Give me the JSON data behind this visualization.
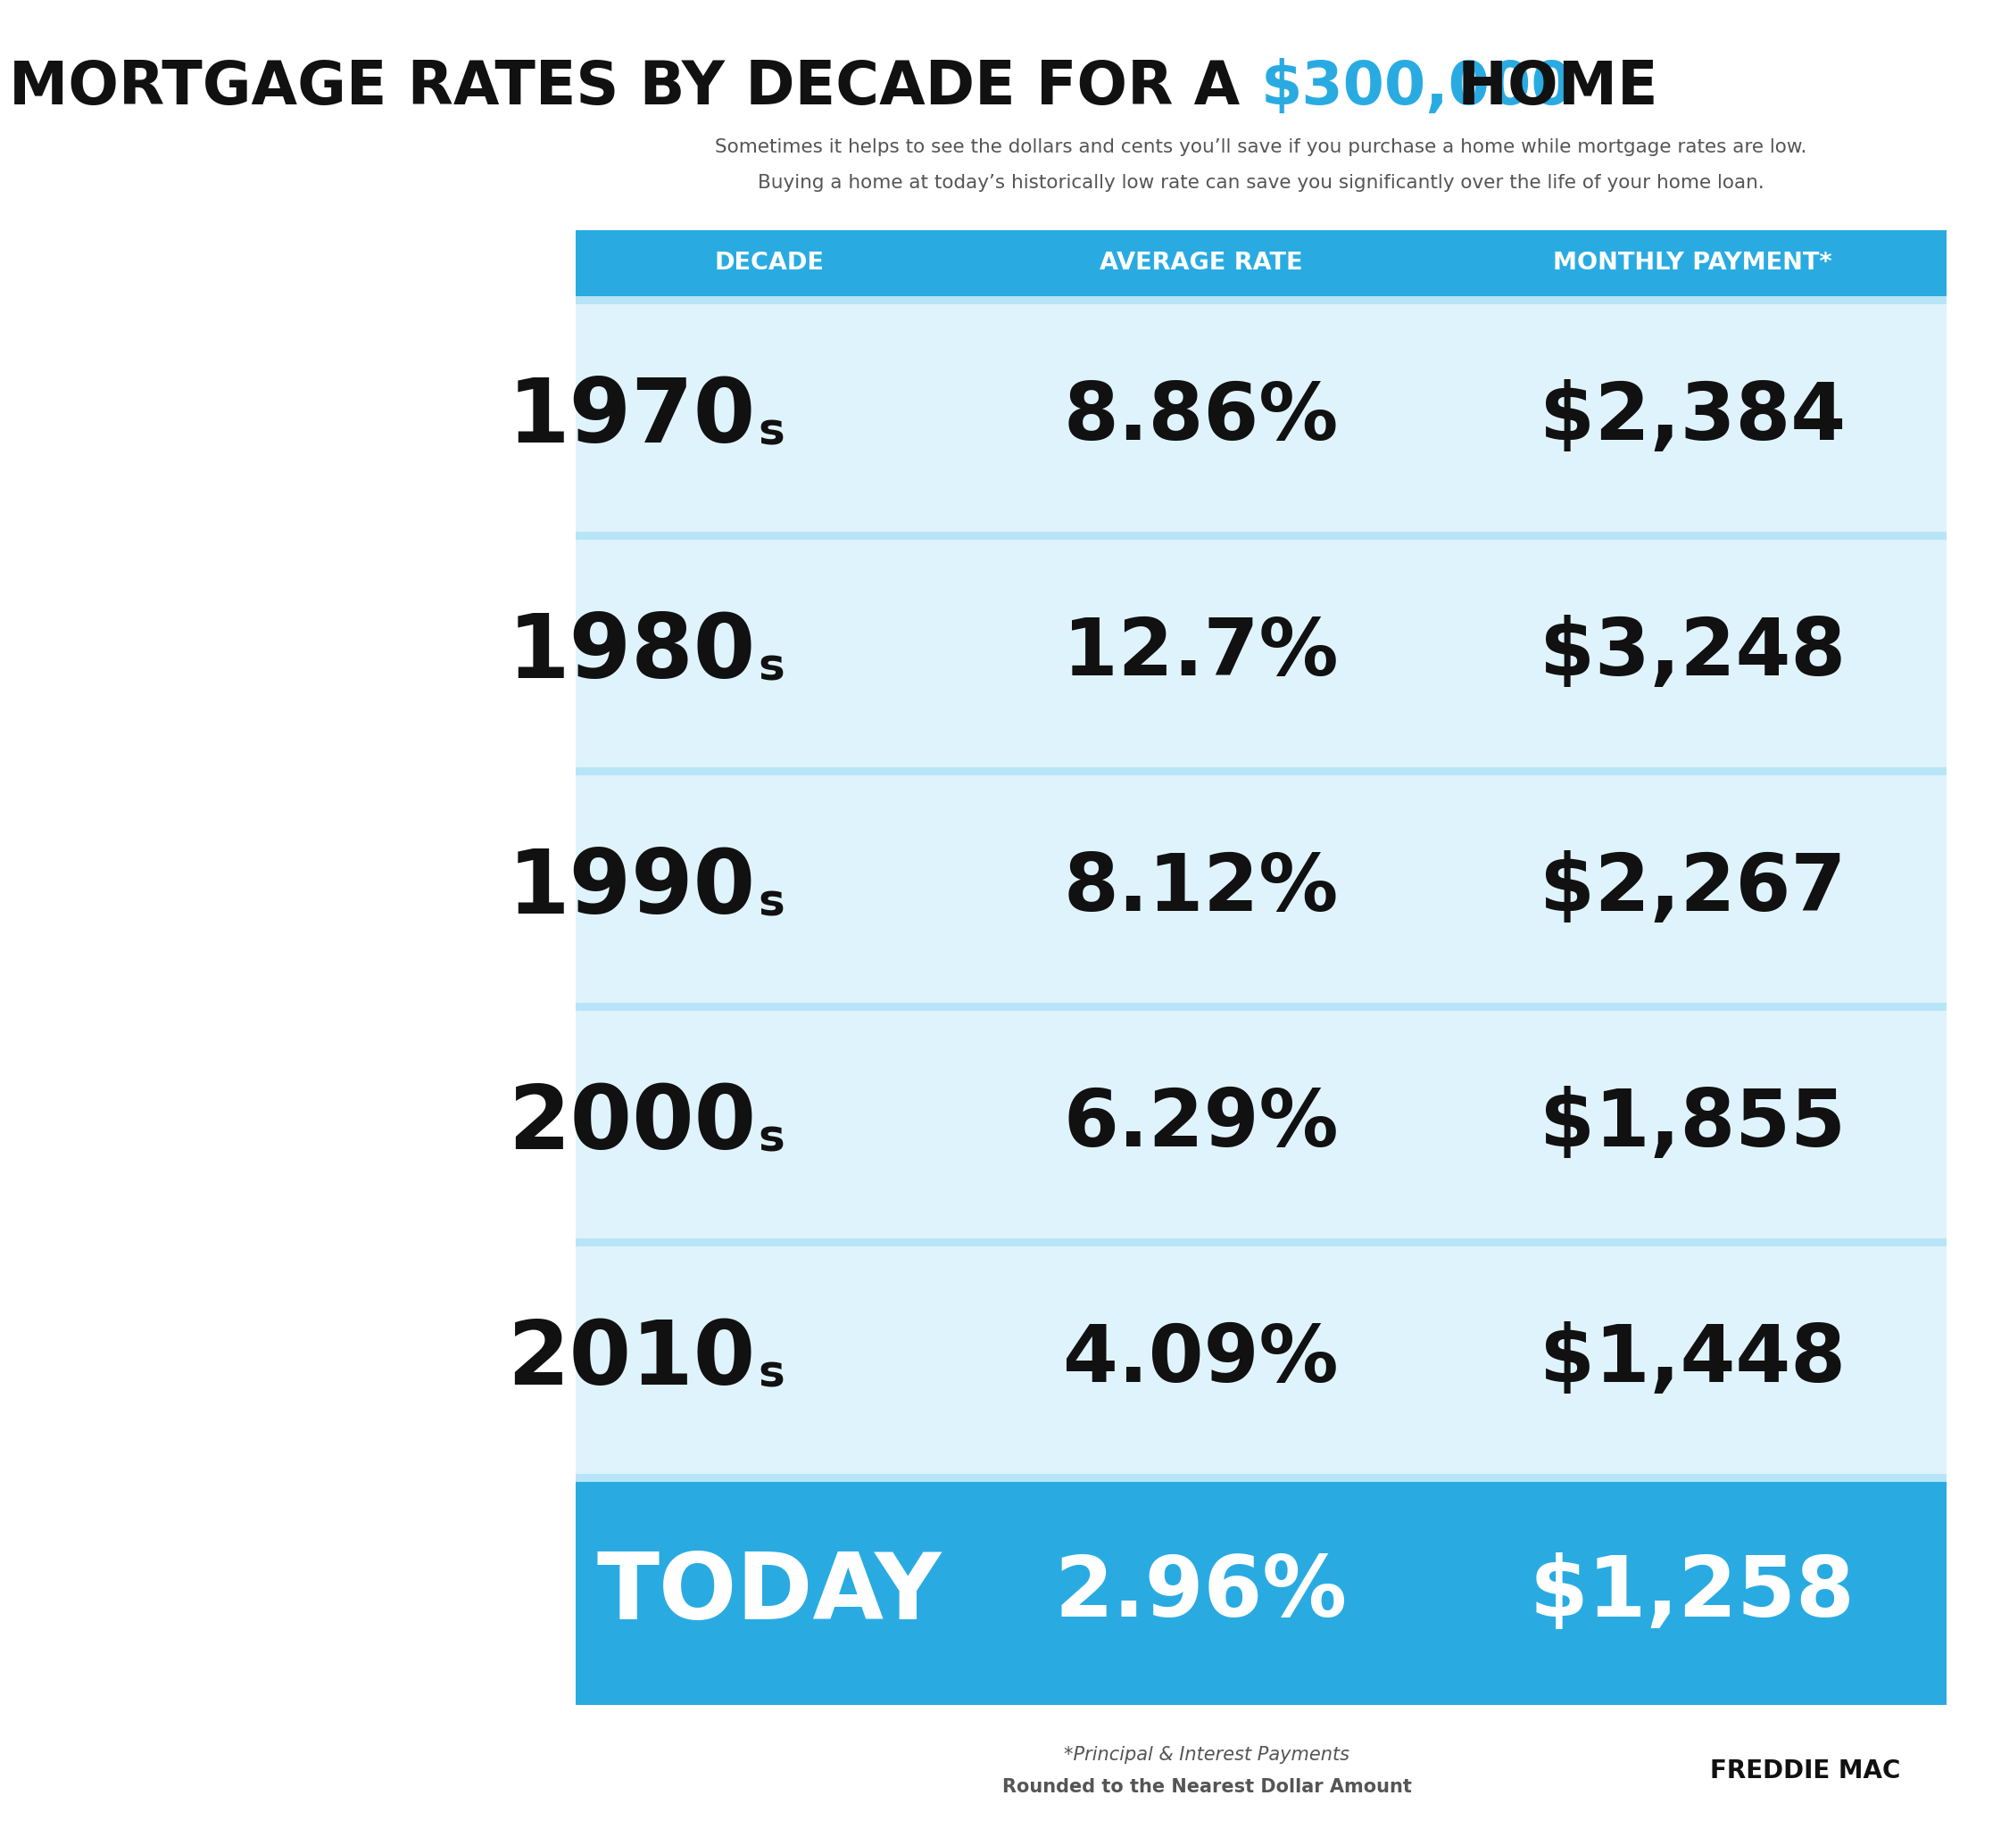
{
  "title_part1": "MORTGAGE RATES BY DECADE FOR A ",
  "title_highlight": "$300,000",
  "title_part2": " HOME",
  "subtitle_line1": "Sometimes it helps to see the dollars and cents you’ll save if you purchase a home while mortgage rates are low.",
  "subtitle_line2": "Buying a home at today’s historically low rate can save you significantly over the life of your home loan.",
  "header_cols": [
    "DECADE",
    "AVERAGE RATE",
    "MONTHLY PAYMENT*"
  ],
  "rows": [
    {
      "decade": "1970",
      "suffix": "s",
      "rate": "8.86%",
      "payment": "$2,384"
    },
    {
      "decade": "1980",
      "suffix": "s",
      "rate": "12.7%",
      "payment": "$3,248"
    },
    {
      "decade": "1990",
      "suffix": "s",
      "rate": "8.12%",
      "payment": "$2,267"
    },
    {
      "decade": "2000",
      "suffix": "s",
      "rate": "6.29%",
      "payment": "$1,855"
    },
    {
      "decade": "2010",
      "suffix": "s",
      "rate": "4.09%",
      "payment": "$1,448"
    }
  ],
  "today_row": {
    "decade": "TODAY",
    "rate": "2.96%",
    "payment": "$1,258"
  },
  "footer_left_line1": "*Principal & Interest Payments",
  "footer_left_line2": "Rounded to the Nearest Dollar Amount",
  "footer_right": "FREDDIE MAC",
  "bg_color": "#ffffff",
  "header_bg": "#29ABE2",
  "header_text_color": "#ffffff",
  "row_bg_light": "#dff3fc",
  "today_bg": "#29ABE2",
  "today_text_color": "#ffffff",
  "title_color": "#111111",
  "title_highlight_color": "#29ABE2",
  "row_text_color": "#111111",
  "subtitle_color": "#555555",
  "separator_color": "#b8e4f7"
}
